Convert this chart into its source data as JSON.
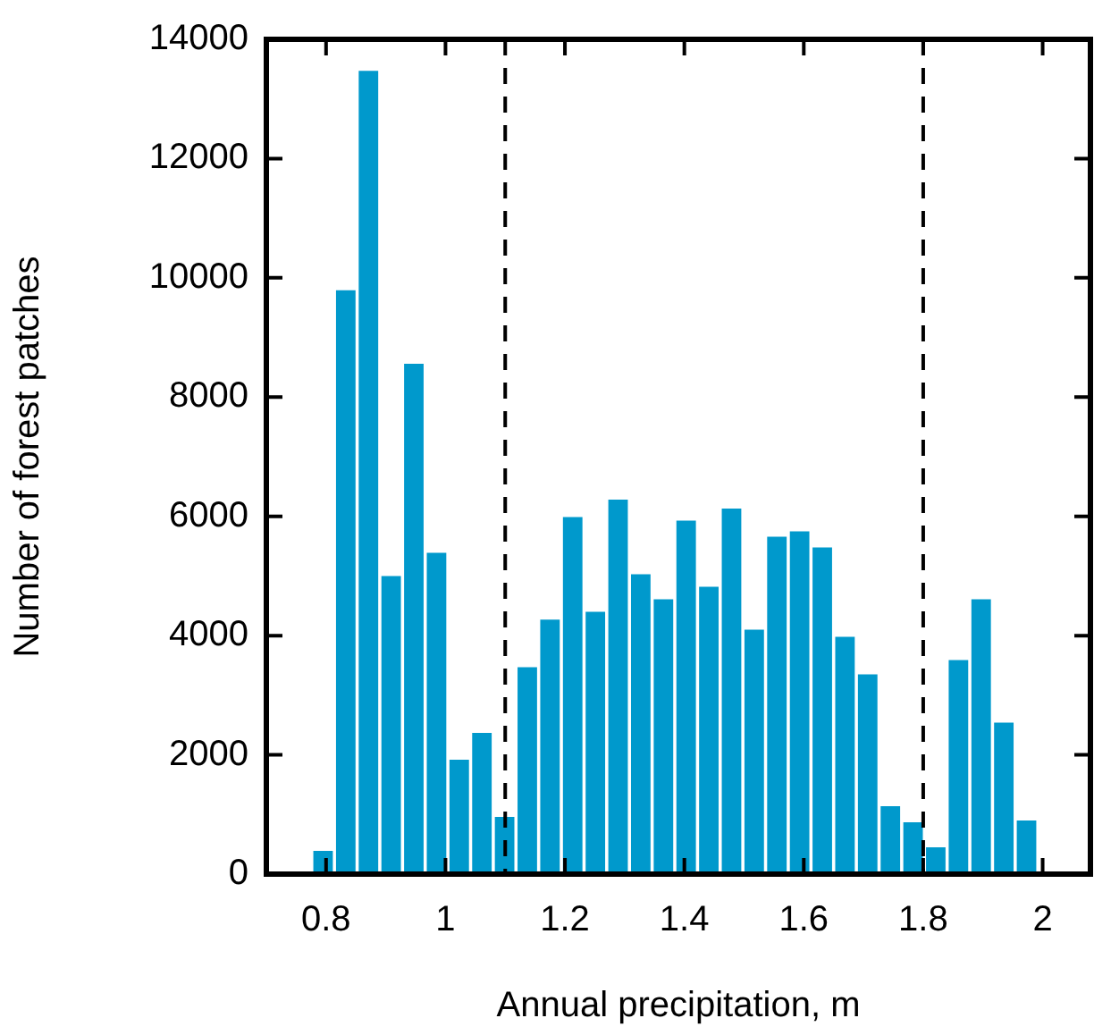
{
  "chart_data": {
    "type": "histogram",
    "xlabel": "Annual precipitation, m",
    "ylabel": "Number of forest patches",
    "color": "#0099cc",
    "bins": [
      0.776,
      0.814,
      0.852,
      0.89,
      0.928,
      0.966,
      1.004,
      1.042,
      1.08,
      1.118,
      1.156,
      1.194,
      1.232,
      1.27,
      1.308,
      1.346,
      1.384,
      1.422,
      1.46,
      1.498,
      1.536,
      1.574,
      1.612,
      1.65,
      1.688,
      1.726,
      1.764,
      1.802,
      1.84,
      1.878,
      1.916,
      1.954,
      1.992
    ],
    "values": [
      390,
      9790,
      13470,
      5000,
      8560,
      5390,
      1920,
      2370,
      960,
      3470,
      4270,
      5990,
      4400,
      6280,
      5030,
      4610,
      5930,
      4820,
      6130,
      4100,
      5660,
      5750,
      5480,
      3980,
      3350,
      1140,
      870,
      450,
      3590,
      4610,
      2540,
      900
    ],
    "xlim": [
      0.7,
      2.08
    ],
    "xticks": [
      0.8,
      1,
      1.2,
      1.4,
      1.6,
      1.8,
      2
    ],
    "ylim": [
      0,
      14000
    ],
    "yticks": [
      0,
      2000,
      4000,
      6000,
      8000,
      10000,
      12000,
      14000
    ],
    "ref_lines": [
      {
        "axis": "x",
        "value": 1.1,
        "color": "#000000",
        "line_style": "dashed"
      },
      {
        "axis": "x",
        "value": 1.8,
        "color": "#000000",
        "line_style": "dashed"
      }
    ],
    "grid": false,
    "legend": false
  }
}
